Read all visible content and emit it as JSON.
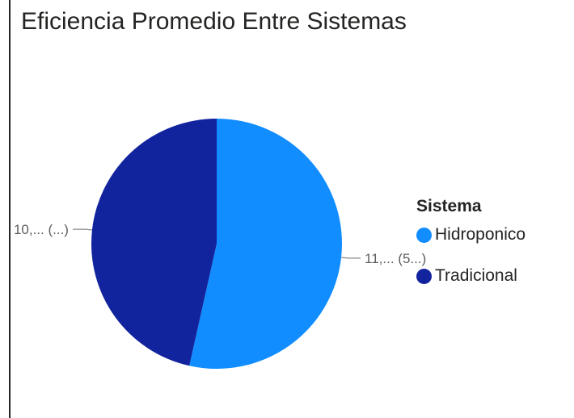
{
  "title": "Eficiencia Promedio Entre Sistemas",
  "legend": {
    "title": "Sistema",
    "items": [
      {
        "label": "Hidroponico",
        "color": "#118dff"
      },
      {
        "label": "Tradicional",
        "color": "#12239e"
      }
    ]
  },
  "chart_data": {
    "type": "pie",
    "title": "Eficiencia Promedio Entre Sistemas",
    "legend_title": "Sistema",
    "legend_position": "right",
    "slices": [
      {
        "name": "Hidroponico",
        "value": 53.5,
        "color": "#118dff",
        "label": "11,... (5...)"
      },
      {
        "name": "Tradicional",
        "value": 46.5,
        "color": "#12239e",
        "label": "10,... (...)"
      }
    ]
  }
}
